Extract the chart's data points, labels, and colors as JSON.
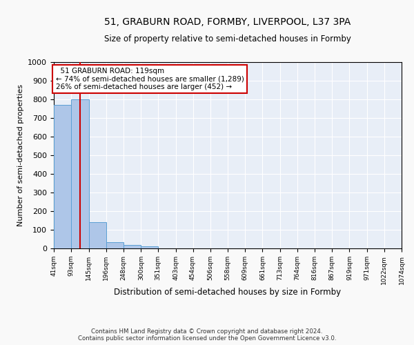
{
  "title": "51, GRABURN ROAD, FORMBY, LIVERPOOL, L37 3PA",
  "subtitle": "Size of property relative to semi-detached houses in Formby",
  "xlabel": "Distribution of semi-detached houses by size in Formby",
  "ylabel": "Number of semi-detached properties",
  "footer_line1": "Contains HM Land Registry data © Crown copyright and database right 2024.",
  "footer_line2": "Contains public sector information licensed under the Open Government Licence v3.0.",
  "annotation_line1": "51 GRABURN ROAD: 119sqm",
  "annotation_line2": "← 74% of semi-detached houses are smaller (1,289)",
  "annotation_line3": "26% of semi-detached houses are larger (452) →",
  "property_size": 119,
  "bin_edges": [
    41,
    93,
    145,
    196,
    248,
    300,
    351,
    403,
    454,
    506,
    558,
    609,
    661,
    713,
    764,
    816,
    867,
    919,
    971,
    1022,
    1074
  ],
  "bin_counts": [
    770,
    800,
    140,
    35,
    18,
    10,
    0,
    0,
    0,
    0,
    0,
    0,
    0,
    0,
    0,
    0,
    0,
    0,
    0,
    0
  ],
  "bar_color": "#aec6e8",
  "bar_edge_color": "#5a9fd4",
  "highlight_color": "#cc0000",
  "background_color": "#e8eef7",
  "grid_color": "#ffffff",
  "annotation_box_color": "#ffffff",
  "annotation_box_edge": "#cc0000",
  "ylim": [
    0,
    1000
  ],
  "yticks": [
    0,
    100,
    200,
    300,
    400,
    500,
    600,
    700,
    800,
    900,
    1000
  ]
}
